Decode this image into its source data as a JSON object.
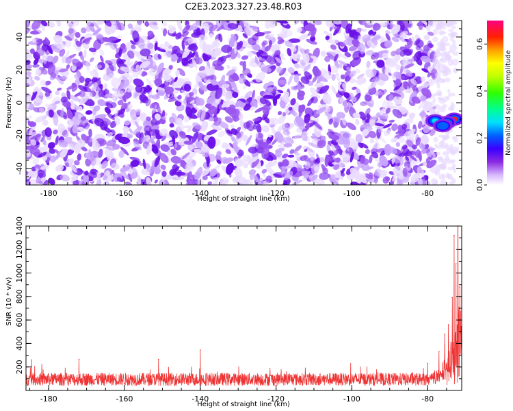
{
  "title": "C2E3.2023.327.23.48.R03",
  "chart_data": [
    {
      "type": "heatmap",
      "xlabel": "Height of straight line (km)",
      "ylabel": "Frequency (Hz)",
      "xlim": [
        -186,
        -71
      ],
      "ylim": [
        -50,
        50
      ],
      "xticks": [
        "-180",
        "-160",
        "-140",
        "-120",
        "-100",
        "-80"
      ],
      "yticks": [
        "-40",
        "-20",
        "0",
        "20",
        "40"
      ],
      "colorbar": {
        "label": "Normalized spectral amplitude",
        "range": [
          0,
          0.7
        ],
        "ticks": [
          "0.0",
          "0.2",
          "0.4",
          "0.6"
        ]
      },
      "features": [
        {
          "x": -73,
          "y": -10,
          "amplitude": 0.68
        },
        {
          "x": -75,
          "y": -12,
          "amplitude": 0.45
        },
        {
          "x": -78,
          "y": -11,
          "amplitude": 0.35
        },
        {
          "x": -76,
          "y": -14,
          "amplitude": 0.3
        }
      ],
      "background_amplitude": "0.0-0.15 random speckle",
      "noise_extent_km": [
        -186,
        -78
      ]
    },
    {
      "type": "line",
      "color": "#ee3333",
      "xlabel": "Height of straight line (km)",
      "ylabel": "SNR (10 * v/v)",
      "xlim": [
        -186,
        -71
      ],
      "ylim": [
        0,
        1400
      ],
      "xticks": [
        "-180",
        "-160",
        "-140",
        "-120",
        "-100",
        "-80"
      ],
      "yticks": [
        "200",
        "400",
        "600",
        "800",
        "1000",
        "1200",
        "1400"
      ],
      "baseline_mean": 95,
      "baseline_spread": 55,
      "notable_points": [
        {
          "x": -184.5,
          "y": 260
        },
        {
          "x": -172,
          "y": 265
        },
        {
          "x": -151,
          "y": 265
        },
        {
          "x": -140,
          "y": 345
        },
        {
          "x": -80,
          "y": 230
        },
        {
          "x": -77,
          "y": 330
        },
        {
          "x": -75.5,
          "y": 480
        },
        {
          "x": -74.5,
          "y": 560
        },
        {
          "x": -73.5,
          "y": 790
        },
        {
          "x": -73,
          "y": 1320
        },
        {
          "x": -72.5,
          "y": 1080
        },
        {
          "x": -72,
          "y": 1400
        },
        {
          "x": -71.5,
          "y": 880
        }
      ]
    }
  ]
}
